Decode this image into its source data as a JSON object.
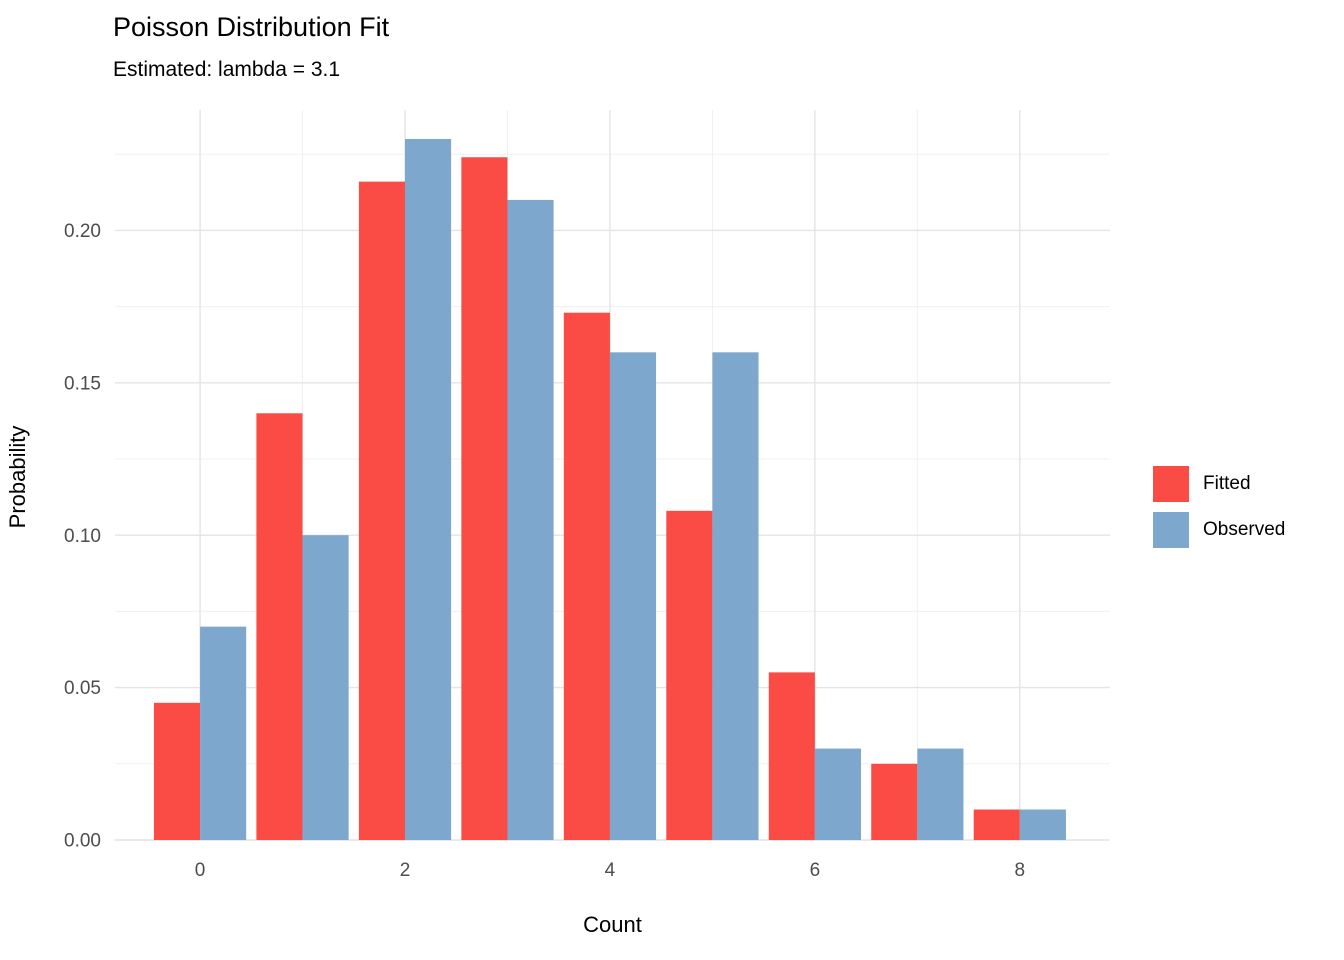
{
  "chart_data": {
    "type": "bar",
    "title": "Poisson Distribution Fit",
    "subtitle": "Estimated: lambda = 3.1",
    "xlabel": "Count",
    "ylabel": "Probability",
    "categories": [
      0,
      1,
      2,
      3,
      4,
      5,
      6,
      7,
      8
    ],
    "series": [
      {
        "name": "Fitted",
        "color": "#FA4B45",
        "values": [
          0.045,
          0.14,
          0.216,
          0.224,
          0.173,
          0.108,
          0.055,
          0.025,
          0.01
        ]
      },
      {
        "name": "Observed",
        "color": "#7DA7CC",
        "values": [
          0.07,
          0.1,
          0.23,
          0.21,
          0.16,
          0.16,
          0.03,
          0.03,
          0.01
        ]
      }
    ],
    "x_ticks": [
      0,
      2,
      4,
      6,
      8
    ],
    "x_tick_labels": [
      "0",
      "2",
      "4",
      "6",
      "8"
    ],
    "x_minor_ticks": [
      1,
      3,
      5,
      7
    ],
    "y_ticks": [
      0.0,
      0.05,
      0.1,
      0.15,
      0.2
    ],
    "y_tick_labels": [
      "0.00",
      "0.05",
      "0.10",
      "0.15",
      "0.20"
    ],
    "y_minor_ticks": [
      0.025,
      0.075,
      0.125,
      0.175,
      0.225
    ],
    "ylim": [
      0,
      0.2395
    ],
    "grid": true,
    "grid_major_color": "#E4E4E4",
    "grid_minor_color": "#F0F0F0",
    "tick_label_color": "#4D4D4D",
    "background": "#FFFFFF",
    "legend_position": "right",
    "bar_width": 0.45
  }
}
